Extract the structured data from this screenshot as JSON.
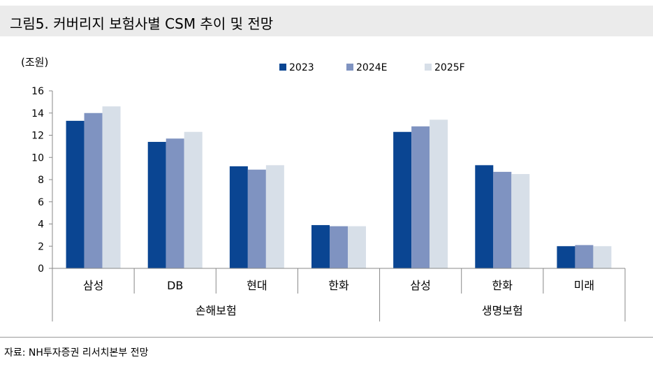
{
  "title": "그림5. 커버리지 보험사별 CSM 추이 및 전망",
  "source": "자료: NH투자증권 리서치본부 전망",
  "chart_data": {
    "type": "bar",
    "unit_label": "(조원)",
    "ylim": [
      0,
      16
    ],
    "yticks": [
      0,
      2,
      4,
      6,
      8,
      10,
      12,
      14,
      16
    ],
    "categories": [
      "삼성",
      "DB",
      "현대",
      "한화",
      "삼성",
      "한화",
      "미래"
    ],
    "groups": [
      {
        "label": "손해보험",
        "start": 0,
        "count": 4
      },
      {
        "label": "생명보험",
        "start": 4,
        "count": 3
      }
    ],
    "series": [
      {
        "name": "2023",
        "color": "#0a4592",
        "values": [
          13.3,
          11.4,
          9.2,
          3.9,
          12.3,
          9.3,
          2.0
        ]
      },
      {
        "name": "2024E",
        "color": "#7f93c1",
        "values": [
          14.0,
          11.7,
          8.9,
          3.8,
          12.8,
          8.7,
          2.1
        ]
      },
      {
        "name": "2025F",
        "color": "#d7dfe8",
        "values": [
          14.6,
          12.3,
          9.3,
          3.8,
          13.4,
          8.5,
          2.0
        ]
      }
    ]
  }
}
